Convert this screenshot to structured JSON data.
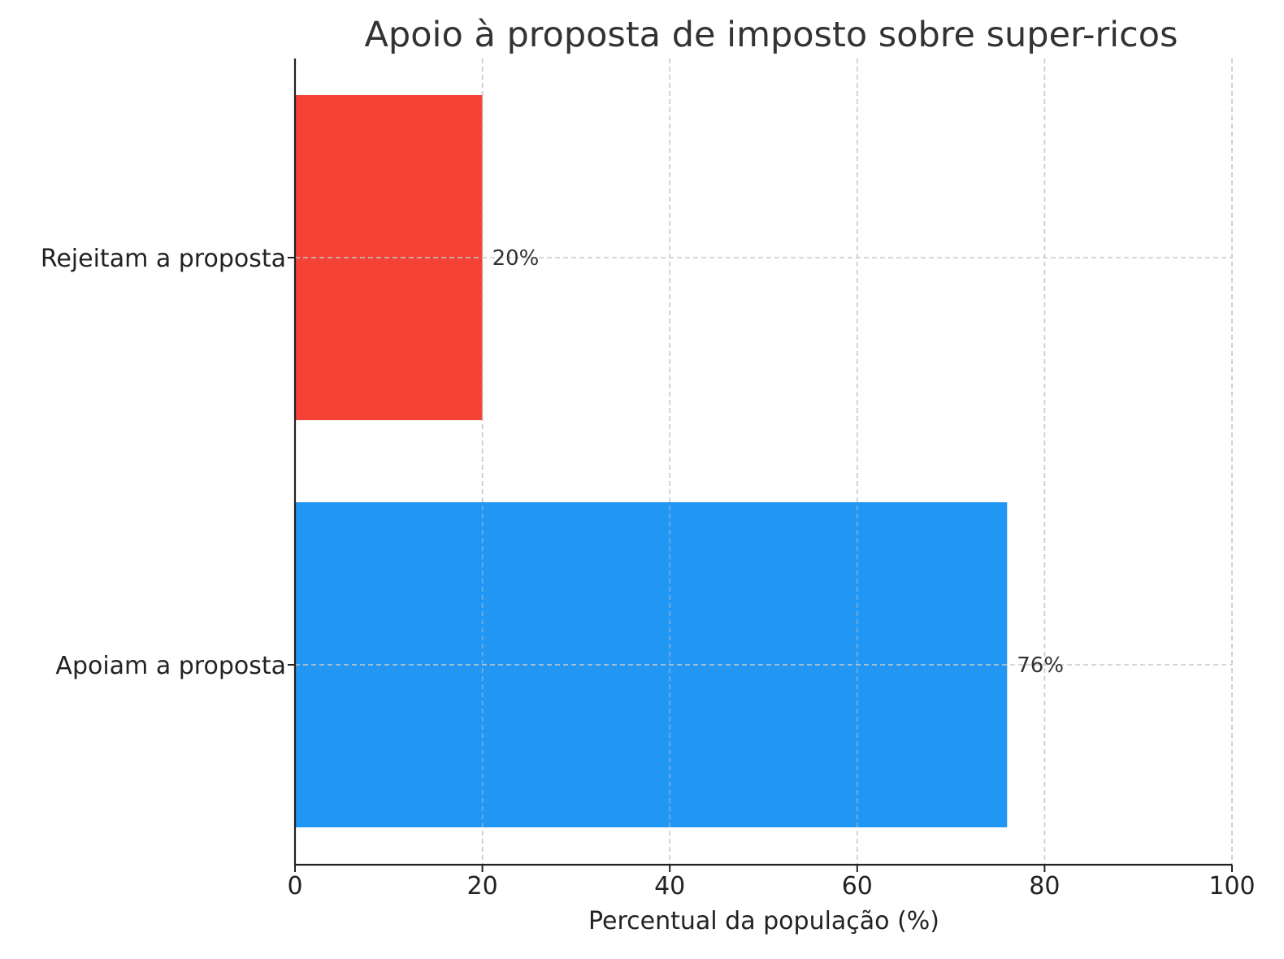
{
  "chart_data": {
    "type": "bar",
    "orientation": "horizontal",
    "title": "Apoio à proposta de imposto sobre super-ricos",
    "xlabel": "Percentual da população (%)",
    "ylabel": "",
    "xlim": [
      0,
      100
    ],
    "xticks": [
      0,
      20,
      40,
      60,
      80,
      100
    ],
    "xtick_labels": [
      "0",
      "20",
      "40",
      "60",
      "80",
      "100"
    ],
    "grid": true,
    "categories": [
      "Apoiam a proposta",
      "Rejeitam a proposta"
    ],
    "values": [
      76,
      20
    ],
    "data_labels": [
      "76%",
      "20%"
    ],
    "colors": [
      "#2196F3",
      "#F44336"
    ]
  }
}
